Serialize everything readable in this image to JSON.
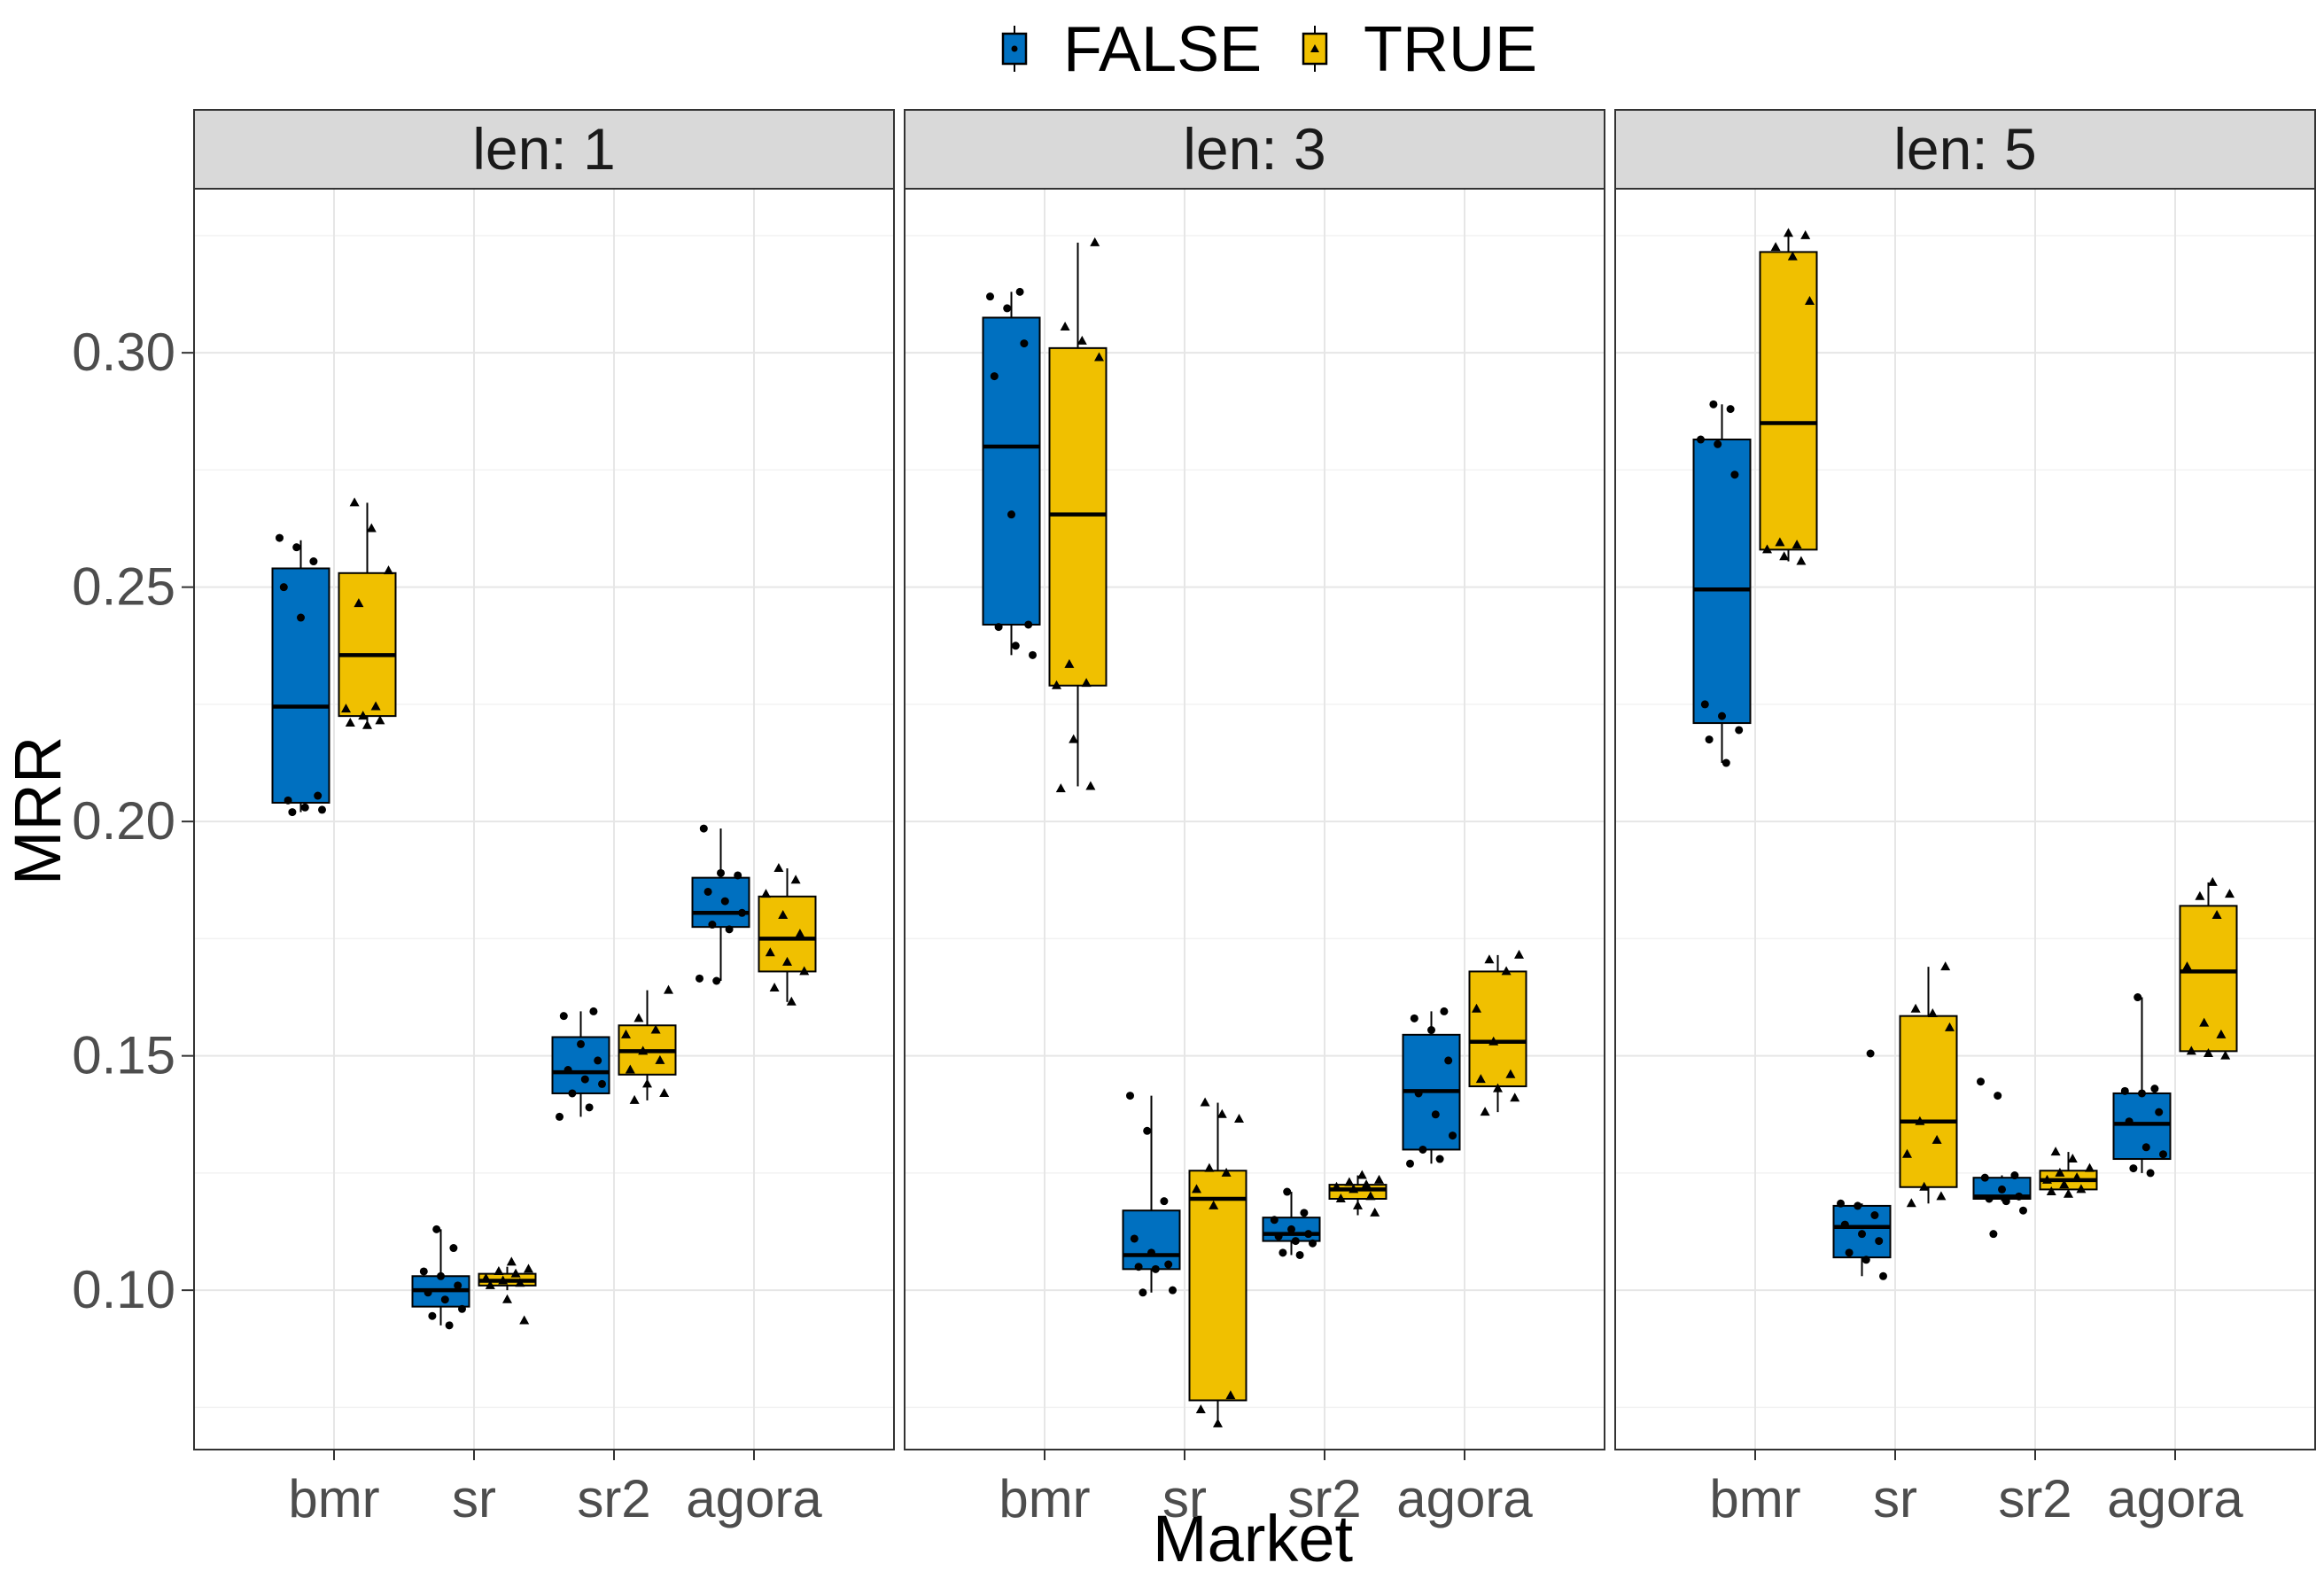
{
  "chart_data": {
    "type": "boxplot",
    "xlabel": "Market",
    "ylabel": "MRR",
    "categories": [
      "bmr",
      "sr",
      "sr2",
      "agora"
    ],
    "yticks": [
      "0.10",
      "0.15",
      "0.20",
      "0.25",
      "0.30"
    ],
    "ylim": [
      0.066,
      0.335
    ],
    "grid": true,
    "legend": {
      "placement": "top",
      "entries": [
        {
          "label": "FALSE",
          "color": "#0070C0",
          "shape": "circle"
        },
        {
          "label": "TRUE",
          "color": "#F0C000",
          "shape": "triangle"
        }
      ]
    },
    "facets": [
      {
        "title": "len: 1",
        "boxes": [
          {
            "category": "bmr",
            "group": "FALSE",
            "min": 0.202,
            "q1": 0.204,
            "median": 0.2245,
            "q3": 0.254,
            "max": 0.26,
            "points": [
              0.2605,
              0.2585,
              0.2555,
              0.25,
              0.2435,
              0.2055,
              0.2045,
              0.203,
              0.2025,
              0.202
            ]
          },
          {
            "category": "bmr",
            "group": "TRUE",
            "min": 0.2205,
            "q1": 0.2225,
            "median": 0.2355,
            "q3": 0.253,
            "max": 0.268,
            "points": [
              0.268,
              0.2625,
              0.2535,
              0.2465,
              0.2245,
              0.224,
              0.2225,
              0.2215,
              0.221,
              0.2205
            ]
          },
          {
            "category": "sr",
            "group": "FALSE",
            "min": 0.0925,
            "q1": 0.0965,
            "median": 0.1,
            "q3": 0.103,
            "max": 0.113,
            "points": [
              0.113,
              0.109,
              0.104,
              0.103,
              0.101,
              0.0995,
              0.098,
              0.096,
              0.0945,
              0.0925
            ]
          },
          {
            "category": "sr",
            "group": "TRUE",
            "min": 0.1,
            "q1": 0.101,
            "median": 0.102,
            "q3": 0.1035,
            "max": 0.105,
            "points": [
              0.106,
              0.1045,
              0.104,
              0.1035,
              0.1025,
              0.102,
              0.1015,
              0.101,
              0.098,
              0.0935
            ]
          },
          {
            "category": "sr2",
            "group": "FALSE",
            "min": 0.137,
            "q1": 0.142,
            "median": 0.1465,
            "q3": 0.154,
            "max": 0.1595,
            "points": [
              0.1595,
              0.1585,
              0.1525,
              0.149,
              0.147,
              0.145,
              0.144,
              0.142,
              0.139,
              0.137
            ]
          },
          {
            "category": "sr2",
            "group": "TRUE",
            "min": 0.1405,
            "q1": 0.146,
            "median": 0.151,
            "q3": 0.1565,
            "max": 0.164,
            "points": [
              0.164,
              0.158,
              0.1555,
              0.1545,
              0.151,
              0.149,
              0.147,
              0.144,
              0.142,
              0.1405
            ]
          },
          {
            "category": "agora",
            "group": "FALSE",
            "min": 0.166,
            "q1": 0.1775,
            "median": 0.1805,
            "q3": 0.188,
            "max": 0.1985,
            "points": [
              0.1985,
              0.189,
              0.1885,
              0.185,
              0.183,
              0.1805,
              0.178,
              0.177,
              0.1665,
              0.166
            ]
          },
          {
            "category": "agora",
            "group": "TRUE",
            "min": 0.1615,
            "q1": 0.168,
            "median": 0.175,
            "q3": 0.184,
            "max": 0.19,
            "points": [
              0.19,
              0.1875,
              0.1845,
              0.18,
              0.176,
              0.172,
              0.17,
              0.168,
              0.1645,
              0.1615
            ]
          }
        ]
      },
      {
        "title": "len: 3",
        "boxes": [
          {
            "category": "bmr",
            "group": "FALSE",
            "min": 0.2355,
            "q1": 0.242,
            "median": 0.28,
            "q3": 0.3075,
            "max": 0.313,
            "points": [
              0.313,
              0.312,
              0.3095,
              0.302,
              0.295,
              0.2655,
              0.242,
              0.2415,
              0.2375,
              0.2355
            ]
          },
          {
            "category": "bmr",
            "group": "TRUE",
            "min": 0.2075,
            "q1": 0.229,
            "median": 0.2655,
            "q3": 0.301,
            "max": 0.3235,
            "points": [
              0.3235,
              0.3055,
              0.3025,
              0.299,
              0.2335,
              0.2295,
              0.229,
              0.2175,
              0.2075,
              0.207
            ]
          },
          {
            "category": "sr",
            "group": "FALSE",
            "min": 0.0995,
            "q1": 0.1045,
            "median": 0.1075,
            "q3": 0.117,
            "max": 0.1415,
            "points": [
              0.1415,
              0.134,
              0.119,
              0.111,
              0.108,
              0.1055,
              0.105,
              0.1045,
              0.1,
              0.0995
            ]
          },
          {
            "category": "sr",
            "group": "TRUE",
            "min": 0.0715,
            "q1": 0.0765,
            "median": 0.1195,
            "q3": 0.1255,
            "max": 0.14,
            "points": [
              0.14,
              0.1375,
              0.1365,
              0.126,
              0.125,
              0.1215,
              0.118,
              0.0775,
              0.0745,
              0.0715
            ]
          },
          {
            "category": "sr2",
            "group": "FALSE",
            "min": 0.1075,
            "q1": 0.1105,
            "median": 0.112,
            "q3": 0.1155,
            "max": 0.121,
            "points": [
              0.121,
              0.1165,
              0.115,
              0.113,
              0.112,
              0.1115,
              0.1105,
              0.11,
              0.108,
              0.1075
            ]
          },
          {
            "category": "sr2",
            "group": "TRUE",
            "min": 0.116,
            "q1": 0.1195,
            "median": 0.1215,
            "q3": 0.1225,
            "max": 0.1245,
            "points": [
              0.1245,
              0.1235,
              0.123,
              0.1225,
              0.122,
              0.1215,
              0.12,
              0.1195,
              0.118,
              0.1165
            ]
          },
          {
            "category": "agora",
            "group": "FALSE",
            "min": 0.127,
            "q1": 0.13,
            "median": 0.1425,
            "q3": 0.1545,
            "max": 0.1595,
            "points": [
              0.1595,
              0.158,
              0.1555,
              0.149,
              0.142,
              0.1375,
              0.133,
              0.13,
              0.128,
              0.127
            ]
          },
          {
            "category": "agora",
            "group": "TRUE",
            "min": 0.138,
            "q1": 0.1435,
            "median": 0.153,
            "q3": 0.168,
            "max": 0.1715,
            "points": [
              0.1715,
              0.1705,
              0.168,
              0.16,
              0.153,
              0.146,
              0.145,
              0.143,
              0.141,
              0.138
            ]
          }
        ]
      },
      {
        "title": "len: 5",
        "boxes": [
          {
            "category": "bmr",
            "group": "FALSE",
            "min": 0.2125,
            "q1": 0.221,
            "median": 0.2495,
            "q3": 0.2815,
            "max": 0.289,
            "points": [
              0.289,
              0.288,
              0.2815,
              0.2805,
              0.274,
              0.225,
              0.2225,
              0.2195,
              0.2175,
              0.2125
            ]
          },
          {
            "category": "bmr",
            "group": "TRUE",
            "min": 0.2555,
            "q1": 0.258,
            "median": 0.285,
            "q3": 0.3215,
            "max": 0.3255,
            "points": [
              0.3255,
              0.325,
              0.3225,
              0.3205,
              0.311,
              0.2595,
              0.259,
              0.258,
              0.2565,
              0.2555
            ]
          },
          {
            "category": "sr",
            "group": "FALSE",
            "min": 0.103,
            "q1": 0.107,
            "median": 0.1135,
            "q3": 0.118,
            "max": 0.1185,
            "points": [
              0.1505,
              0.1185,
              0.118,
              0.116,
              0.114,
              0.112,
              0.1105,
              0.108,
              0.1065,
              0.103
            ]
          },
          {
            "category": "sr",
            "group": "TRUE",
            "min": 0.1185,
            "q1": 0.122,
            "median": 0.136,
            "q3": 0.1585,
            "max": 0.169,
            "points": [
              0.169,
              0.16,
              0.159,
              0.156,
              0.136,
              0.132,
              0.129,
              0.122,
              0.12,
              0.1185
            ]
          },
          {
            "category": "sr2",
            "group": "FALSE",
            "min": 0.119,
            "q1": 0.1195,
            "median": 0.12,
            "q3": 0.124,
            "max": 0.1245,
            "points": [
              0.1445,
              0.1415,
              0.1245,
              0.124,
              0.1215,
              0.12,
              0.1195,
              0.119,
              0.117,
              0.112
            ]
          },
          {
            "category": "sr2",
            "group": "TRUE",
            "min": 0.1205,
            "q1": 0.1215,
            "median": 0.1235,
            "q3": 0.1255,
            "max": 0.1295,
            "points": [
              0.1295,
              0.128,
              0.126,
              0.125,
              0.124,
              0.1235,
              0.1225,
              0.1215,
              0.121,
              0.1205
            ]
          },
          {
            "category": "agora",
            "group": "FALSE",
            "min": 0.125,
            "q1": 0.128,
            "median": 0.1355,
            "q3": 0.142,
            "max": 0.1625,
            "points": [
              0.1625,
              0.143,
              0.1425,
              0.142,
              0.138,
              0.136,
              0.1305,
              0.129,
              0.126,
              0.125
            ]
          },
          {
            "category": "agora",
            "group": "TRUE",
            "min": 0.15,
            "q1": 0.151,
            "median": 0.168,
            "q3": 0.182,
            "max": 0.187,
            "points": [
              0.187,
              0.1845,
              0.184,
              0.18,
              0.169,
              0.157,
              0.1545,
              0.151,
              0.1505,
              0.15
            ]
          }
        ]
      }
    ]
  }
}
